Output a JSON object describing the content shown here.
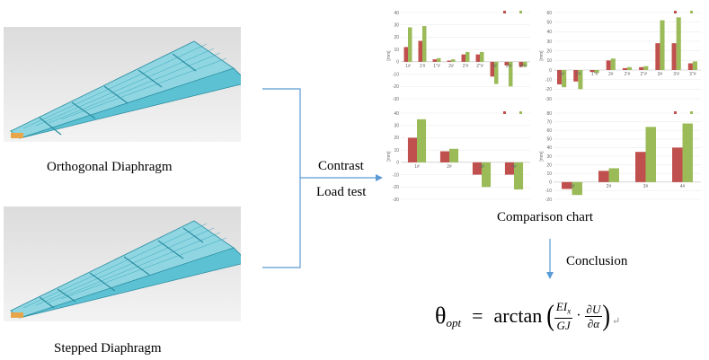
{
  "labels": {
    "orthogonal": "Orthogonal Diaphragm",
    "stepped": "Stepped Diaphragm",
    "contrast": "Contrast",
    "load_test": "Load test",
    "comparison": "Comparison chart",
    "conclusion": "Conclusion"
  },
  "formula": {
    "lhs": "θ",
    "lhs_sub": "opt",
    "eq": "=",
    "fn": "arctan",
    "frac1_num": "EI",
    "frac1_num_sub": "x",
    "frac1_den": "GJ",
    "dot": "·",
    "frac2_num": "∂U",
    "frac2_den": "∂α",
    "mark": "↵"
  },
  "colors": {
    "series_red": "#c0504d",
    "series_green": "#9bbb59",
    "arrow": "#5b9bd5",
    "bracket": "#5b9bd5",
    "model_fill": "#62c4d6",
    "model_edge": "#2a8da0"
  },
  "chart_data": [
    {
      "type": "bar",
      "unit": "[mm]",
      "ylim": [
        -30,
        40
      ],
      "yticks": [
        -30,
        -20,
        -10,
        0,
        10,
        20,
        30,
        40
      ],
      "categories": [
        "1#",
        "1'#",
        "1''#",
        "2#",
        "2'#",
        "2''#",
        "3#",
        "3'#",
        "3''#"
      ],
      "series": [
        {
          "values": [
            12,
            17,
            2,
            1,
            6,
            6,
            -12,
            -3,
            -4
          ]
        },
        {
          "values": [
            28,
            29,
            3,
            2,
            8,
            8,
            -18,
            -20,
            -4
          ]
        }
      ]
    },
    {
      "type": "bar",
      "unit": "[mm]",
      "ylim": [
        -30,
        60
      ],
      "yticks": [
        -30,
        -20,
        -10,
        0,
        10,
        20,
        30,
        40,
        50,
        60
      ],
      "categories": [
        "1#",
        "1'#",
        "1''#",
        "2#",
        "2'#",
        "2''#",
        "3#",
        "3'#",
        "3''#"
      ],
      "series": [
        {
          "values": [
            -15,
            -12,
            -2,
            10,
            2,
            3,
            28,
            28,
            7
          ]
        },
        {
          "values": [
            -18,
            -20,
            -3,
            12,
            3,
            4,
            52,
            55,
            9
          ]
        }
      ]
    },
    {
      "type": "bar",
      "unit": "[mm]",
      "ylim": [
        -30,
        40
      ],
      "yticks": [
        -30,
        -20,
        -10,
        0,
        10,
        20,
        30,
        40
      ],
      "categories": [
        "1#",
        "2#",
        "3#",
        "4#"
      ],
      "series": [
        {
          "values": [
            20,
            9,
            -10,
            -10
          ]
        },
        {
          "values": [
            35,
            11,
            -20,
            -22
          ]
        }
      ]
    },
    {
      "type": "bar",
      "unit": "[mm]",
      "ylim": [
        -20,
        80
      ],
      "yticks": [
        -20,
        -10,
        0,
        10,
        20,
        30,
        40,
        50,
        60,
        70,
        80
      ],
      "categories": [
        "1#",
        "2#",
        "3#",
        "4#"
      ],
      "series": [
        {
          "values": [
            -8,
            13,
            35,
            40
          ]
        },
        {
          "values": [
            -15,
            16,
            64,
            68
          ]
        }
      ]
    }
  ]
}
